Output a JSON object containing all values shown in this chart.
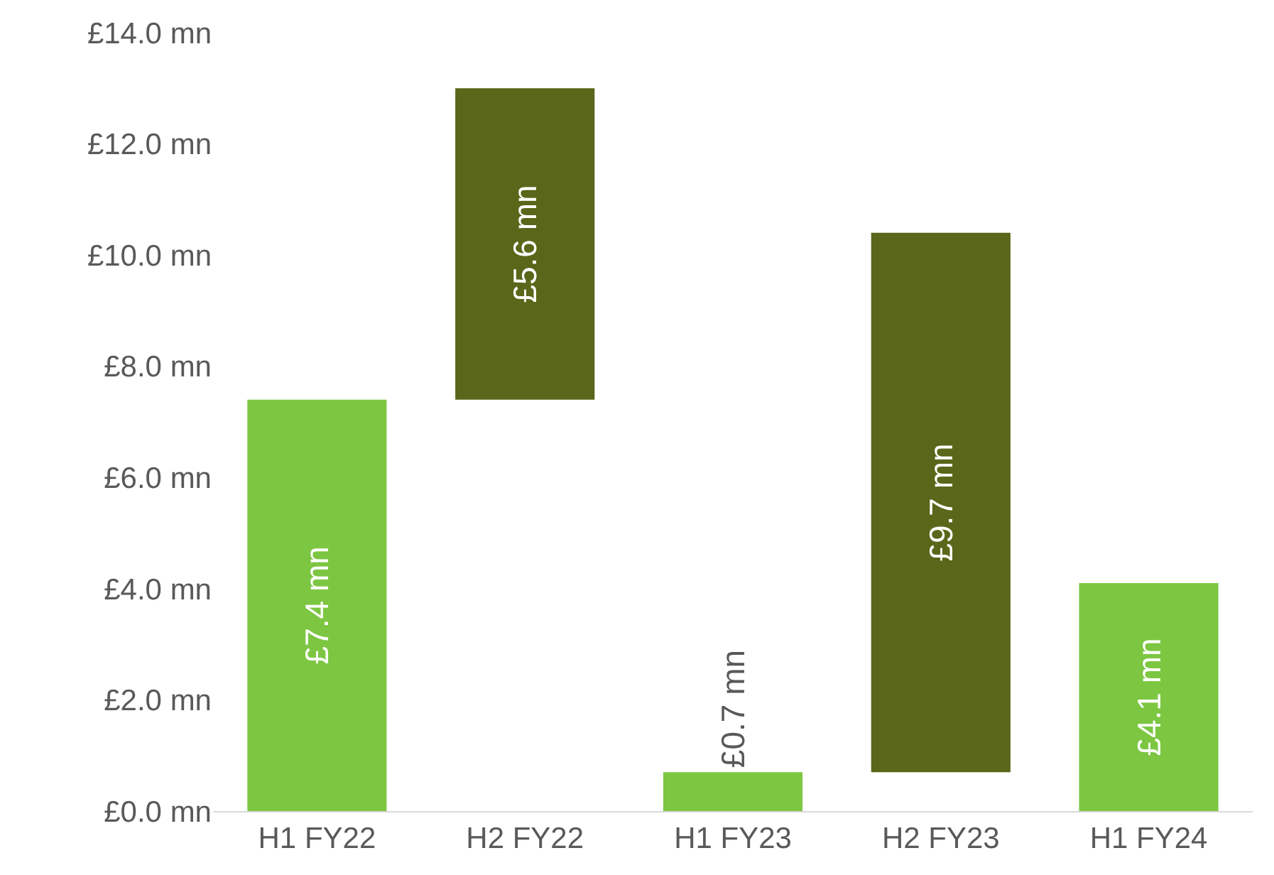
{
  "chart_data": {
    "type": "bar",
    "categories": [
      "H1 FY22",
      "H2 FY22",
      "H1 FY23",
      "H2 FY23",
      "H1 FY24"
    ],
    "values": [
      7.4,
      5.6,
      0.7,
      9.7,
      4.1
    ],
    "base": [
      0,
      7.4,
      0,
      0.7,
      0
    ],
    "colors": [
      "#7dc642",
      "#5a6619",
      "#7dc642",
      "#5a6619",
      "#7dc642"
    ],
    "value_labels": [
      "£7.4 mn",
      "£5.6 mn",
      "£0.7 mn",
      "£9.7 mn",
      "£4.1 mn"
    ],
    "ylim": [
      0,
      14
    ],
    "yticks": [
      {
        "value": 0,
        "label": "£0.0 mn"
      },
      {
        "value": 2,
        "label": "£2.0 mn"
      },
      {
        "value": 4,
        "label": "£4.0 mn"
      },
      {
        "value": 6,
        "label": "£6.0 mn"
      },
      {
        "value": 8,
        "label": "£8.0 mn"
      },
      {
        "value": 10,
        "label": "£10.0 mn"
      },
      {
        "value": 12,
        "label": "£12.0 mn"
      },
      {
        "value": 14,
        "label": "£14.0 mn"
      }
    ],
    "grid": false
  }
}
